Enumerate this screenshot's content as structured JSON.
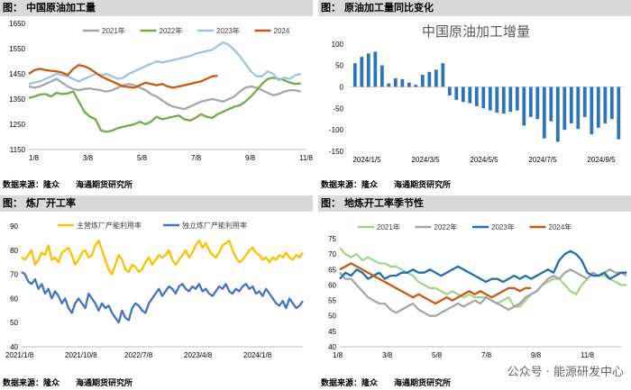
{
  "source_text": {
    "label": "数据来源：",
    "source": "隆众",
    "org": "海通期货研究所"
  },
  "watermark": "公众号 · 能源研发中心",
  "chart_data": [
    {
      "panel_title": {
        "prefix": "图：",
        "text": "中国原油加工量"
      },
      "type": "line",
      "xticks": [
        "1/8",
        "3/8",
        "5/8",
        "7/8",
        "9/8",
        "11/8"
      ],
      "yticks": [
        1150,
        1250,
        1350,
        1450,
        1550,
        1650
      ],
      "ylim": [
        1150,
        1650
      ],
      "xlim": [
        0,
        51
      ],
      "legend": "top",
      "series": [
        {
          "name": "2021年",
          "color": "#a6a6a6",
          "values": [
            1400,
            1395,
            1400,
            1410,
            1420,
            1430,
            1415,
            1400,
            1390,
            1385,
            1390,
            1392,
            1388,
            1385,
            1380,
            1385,
            1395,
            1405,
            1410,
            1405,
            1395,
            1385,
            1370,
            1360,
            1345,
            1330,
            1320,
            1315,
            1310,
            1320,
            1330,
            1340,
            1345,
            1350,
            1345,
            1340,
            1350,
            1360,
            1380,
            1395,
            1400,
            1395,
            1385,
            1375,
            1365,
            1370,
            1380,
            1385,
            1385,
            1380
          ]
        },
        {
          "name": "2022年",
          "color": "#70ad47",
          "values": [
            1355,
            1360,
            1368,
            1370,
            1360,
            1375,
            1370,
            1372,
            1380,
            1340,
            1300,
            1280,
            1270,
            1225,
            1220,
            1225,
            1235,
            1240,
            1245,
            1250,
            1260,
            1250,
            1260,
            1280,
            1270,
            1275,
            1280,
            1285,
            1270,
            1265,
            1275,
            1290,
            1280,
            1275,
            1290,
            1300,
            1310,
            1320,
            1325,
            1340,
            1360,
            1385,
            1410,
            1430,
            1435,
            1430,
            1425,
            1415,
            1410,
            1412
          ]
        },
        {
          "name": "2023年",
          "color": "#9dc3e6",
          "values": [
            1410,
            1415,
            1420,
            1430,
            1440,
            1450,
            1445,
            1440,
            1430,
            1420,
            1430,
            1440,
            1450,
            1445,
            1450,
            1440,
            1430,
            1435,
            1450,
            1460,
            1470,
            1480,
            1490,
            1500,
            1495,
            1500,
            1505,
            1510,
            1515,
            1520,
            1530,
            1535,
            1540,
            1545,
            1560,
            1575,
            1565,
            1545,
            1520,
            1490,
            1460,
            1440,
            1440,
            1460,
            1450,
            1425,
            1435,
            1430,
            1445,
            1450
          ]
        },
        {
          "name": "2024",
          "color": "#c55a11",
          "values": [
            1450,
            1465,
            1470,
            1465,
            1462,
            1460,
            1455,
            1445,
            1470,
            1485,
            1480,
            1470,
            1455,
            1440,
            1430,
            1420,
            1410,
            1400,
            1398,
            1395,
            1405,
            1415,
            1410,
            1405,
            1410,
            1400,
            1395,
            1400,
            1405,
            1410,
            1415,
            1420,
            1430,
            1440,
            1442
          ]
        }
      ]
    },
    {
      "panel_title": {
        "prefix": "图：",
        "text": "原油加工量同比变化"
      },
      "type": "bar",
      "title": "中国原油加工增量",
      "xticks": [
        "2024/1/5",
        "2024/3/5",
        "2024/5/5",
        "2024/7/5",
        "2024/9/5"
      ],
      "yticks": [
        -150,
        -100,
        -50,
        0,
        50,
        100
      ],
      "ylim": [
        -150,
        110
      ],
      "color": "#2e75b6",
      "values": [
        55,
        70,
        78,
        82,
        50,
        8,
        20,
        18,
        10,
        5,
        28,
        35,
        40,
        55,
        -20,
        -30,
        -35,
        -38,
        -45,
        -50,
        -55,
        -60,
        -62,
        -58,
        -55,
        -90,
        -70,
        -75,
        -120,
        -80,
        -128,
        -100,
        -85,
        -98,
        -70,
        -110,
        -95,
        -85,
        -75,
        -122
      ]
    },
    {
      "panel_title": {
        "prefix": "图：",
        "text": "炼厂开工率"
      },
      "type": "line",
      "xticks": [
        "2021/1/8",
        "2021/10/8",
        "2022/7/8",
        "2023/4/8",
        "2024/1/8"
      ],
      "yticks": [
        40,
        50,
        60,
        70,
        80,
        90
      ],
      "ylim": [
        40,
        90
      ],
      "legend": "top",
      "series": [
        {
          "name": "主营炼厂产能利用率",
          "color": "#ffc000",
          "values": [
            77,
            76,
            78,
            80,
            74,
            76,
            79,
            78,
            82,
            76,
            77,
            75,
            79,
            80,
            81,
            78,
            74,
            76,
            79,
            80,
            77,
            78,
            82,
            84,
            80,
            76,
            72,
            70,
            74,
            78,
            76,
            72,
            71,
            74,
            73,
            71,
            72,
            75,
            77,
            74,
            76,
            78,
            77,
            78,
            80,
            76,
            74,
            76,
            78,
            80,
            77,
            79,
            82,
            84,
            81,
            83,
            80,
            78,
            77,
            79,
            82,
            83,
            84,
            80,
            77,
            75,
            76,
            78,
            80,
            81,
            79,
            78,
            76,
            77,
            75,
            77,
            76,
            78,
            77,
            79,
            77,
            76,
            78,
            77,
            79
          ]
        },
        {
          "name": "独立炼厂产能利用率",
          "color": "#4472c4",
          "values": [
            71,
            70,
            67,
            66,
            68,
            64,
            66,
            62,
            64,
            60,
            63,
            61,
            58,
            60,
            56,
            54,
            58,
            60,
            58,
            56,
            62,
            60,
            58,
            55,
            58,
            56,
            57,
            54,
            52,
            50,
            55,
            52,
            51,
            56,
            58,
            57,
            55,
            54,
            58,
            60,
            62,
            64,
            61,
            63,
            65,
            64,
            62,
            65,
            66,
            64,
            63,
            65,
            64,
            66,
            63,
            64,
            62,
            61,
            63,
            65,
            64,
            66,
            63,
            62,
            64,
            63,
            65,
            66,
            64,
            65,
            62,
            63,
            61,
            64,
            62,
            60,
            58,
            57,
            59,
            56,
            60,
            58,
            56,
            57,
            59
          ]
        }
      ]
    },
    {
      "panel_title": {
        "prefix": "图：",
        "text": "地炼开工率季节性"
      },
      "type": "line",
      "xticks": [
        "1/8",
        "3/8",
        "5/8",
        "7/8",
        "9/8",
        "11/8"
      ],
      "yticks": [
        40,
        45,
        50,
        55,
        60,
        65,
        70,
        75
      ],
      "ylim": [
        40,
        75
      ],
      "xlim": [
        0,
        51
      ],
      "legend": "top",
      "series": [
        {
          "name": "2021年",
          "color": "#a9d18e",
          "values": [
            72,
            70,
            69,
            70,
            68,
            69,
            68,
            67,
            67,
            66,
            66,
            65,
            64,
            63,
            61,
            60,
            59,
            59,
            58,
            57,
            58,
            57,
            56,
            57,
            56,
            56,
            56,
            55,
            54,
            55,
            56,
            53,
            53,
            55,
            57,
            58,
            60,
            61,
            62,
            62,
            60,
            58,
            57,
            60,
            62,
            64,
            63,
            63,
            62,
            61,
            60,
            60
          ]
        },
        {
          "name": "2022年",
          "color": "#a6a6a6",
          "values": [
            64,
            62,
            62,
            60,
            58,
            56,
            55,
            54,
            54,
            52,
            51,
            52,
            53,
            54,
            52,
            51,
            50,
            50,
            51,
            52,
            53,
            54,
            53,
            54,
            55,
            54,
            56,
            55,
            54,
            53,
            52,
            53,
            54,
            56,
            57,
            58,
            60,
            62,
            63,
            62,
            64,
            65,
            64,
            63,
            62,
            64,
            63,
            64,
            65,
            64,
            64,
            63
          ]
        },
        {
          "name": "2023年",
          "color": "#1f6fad",
          "values": [
            62,
            64,
            63,
            65,
            64,
            62,
            63,
            64,
            62,
            63,
            63,
            64,
            64,
            65,
            64,
            64,
            65,
            64,
            63,
            64,
            65,
            66,
            65,
            64,
            63,
            62,
            61,
            62,
            62,
            61,
            62,
            63,
            62,
            63,
            62,
            63,
            64,
            65,
            64,
            68,
            70,
            71,
            70,
            68,
            64,
            63,
            63,
            64,
            62,
            63,
            64,
            64
          ]
        },
        {
          "name": "2024年",
          "color": "#c55a11",
          "values": [
            65,
            66,
            67,
            66,
            65,
            64,
            63,
            62,
            61,
            60,
            59,
            58,
            57,
            56,
            57,
            56,
            55,
            54,
            55,
            56,
            55,
            56,
            57,
            58,
            57,
            58,
            57,
            56,
            57,
            58,
            59,
            59,
            58,
            59,
            59
          ]
        }
      ]
    }
  ]
}
